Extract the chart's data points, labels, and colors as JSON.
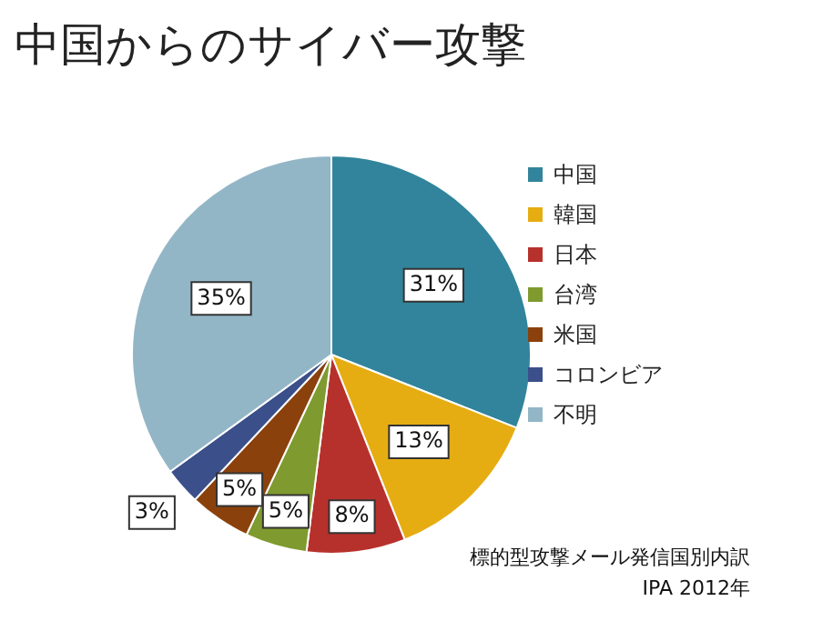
{
  "chart_data": {
    "type": "pie",
    "title": "中国からのサイバー攻撃",
    "categories": [
      "中国",
      "韓国",
      "日本",
      "台湾",
      "米国",
      "コロンビア",
      "不明"
    ],
    "values": [
      31,
      13,
      8,
      5,
      5,
      3,
      35
    ],
    "colors": [
      "#31849b",
      "#e6ad12",
      "#b7312c",
      "#7f9a2e",
      "#8b410c",
      "#3b4f8a",
      "#93b6c6"
    ],
    "value_labels": [
      "31%",
      "13%",
      "8%",
      "5%",
      "5%",
      "3%",
      "35%"
    ],
    "legend": "right",
    "annotations": [
      "標的型攻撃メール発信国別内訳",
      "IPA 2012年"
    ]
  }
}
